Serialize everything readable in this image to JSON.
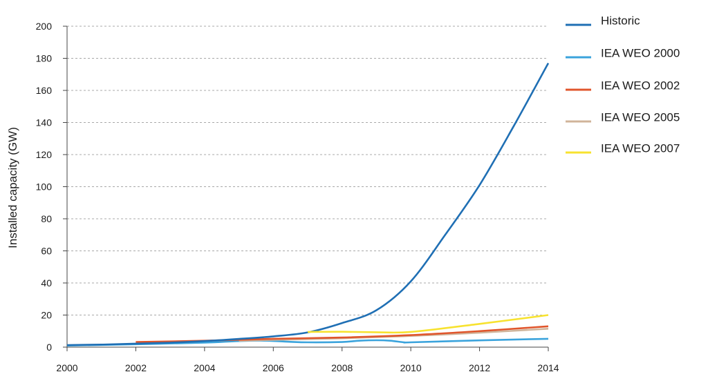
{
  "chart_data": {
    "type": "line",
    "ylabel": "Installed capacity (GW)",
    "xlabel": "",
    "xlim": [
      2000,
      2014
    ],
    "ylim": [
      0,
      200
    ],
    "x_ticks": [
      2000,
      2002,
      2004,
      2006,
      2008,
      2010,
      2012,
      2014
    ],
    "y_ticks": [
      0,
      20,
      40,
      60,
      80,
      100,
      120,
      140,
      160,
      180,
      200
    ],
    "grid": "horizontal-dashed",
    "legend_position": "right",
    "series": [
      {
        "name": "Historic",
        "color": "#1f6fb4",
        "x": [
          2000,
          2001,
          2002,
          2003,
          2004,
          2005,
          2006,
          2007,
          2008,
          2009,
          2010,
          2011,
          2012,
          2013,
          2014
        ],
        "values": [
          1.3,
          1.6,
          2.2,
          2.8,
          3.8,
          5.1,
          6.7,
          9.2,
          15,
          23,
          41,
          70,
          101,
          138,
          177
        ]
      },
      {
        "name": "IEA WEO 2000",
        "color": "#3aa3dc",
        "x": [
          2000,
          2002,
          2004,
          2005,
          2005.8,
          2006.5,
          2007,
          2008,
          2008.5,
          2009,
          2009.4,
          2009.8,
          2010,
          2012,
          2014
        ],
        "values": [
          1.0,
          1.8,
          2.8,
          3.8,
          4.0,
          3.3,
          3.0,
          3.2,
          4.0,
          4.3,
          4.0,
          3.0,
          3.0,
          4.2,
          5.2
        ]
      },
      {
        "name": "IEA WEO 2002",
        "color": "#e0552b",
        "x": [
          2002,
          2004,
          2006,
          2008,
          2010,
          2012,
          2014
        ],
        "values": [
          3.2,
          4.0,
          5.2,
          6.0,
          7.5,
          10,
          13
        ]
      },
      {
        "name": "IEA WEO 2005",
        "color": "#d0b49a",
        "x": [
          2005,
          2006,
          2008,
          2010,
          2012,
          2014
        ],
        "values": [
          4.0,
          4.5,
          5.5,
          7.0,
          9.0,
          11.5
        ]
      },
      {
        "name": "IEA WEO 2007",
        "color": "#f7e22f",
        "x": [
          2007,
          2008,
          2009,
          2010,
          2012,
          2014
        ],
        "values": [
          9.5,
          9.6,
          9.3,
          9.5,
          14.5,
          20
        ]
      }
    ]
  }
}
